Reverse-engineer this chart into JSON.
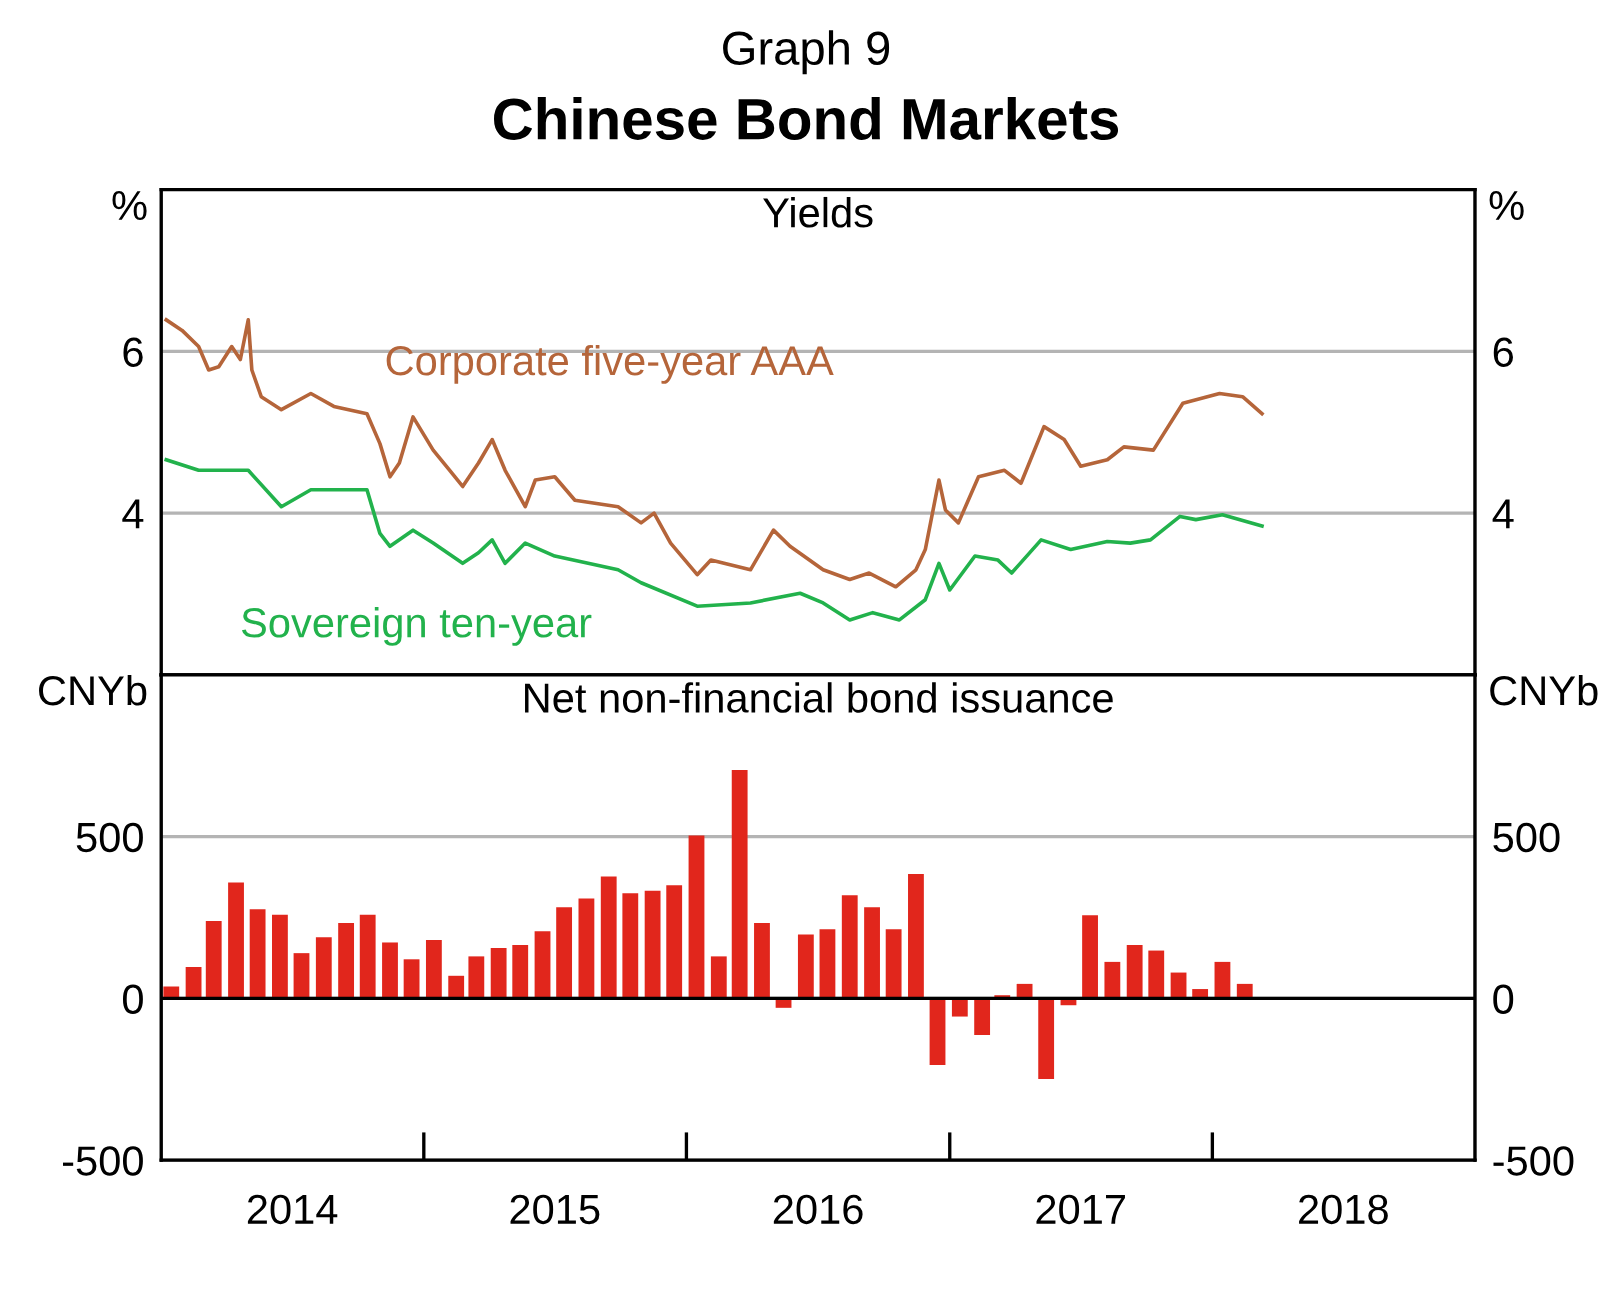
{
  "chart_data": [
    {
      "type": "line",
      "title": "Chinese Bond Markets",
      "subtitle": "Graph 9",
      "annotations": [
        "Yields"
      ],
      "ylabel": "%",
      "y2label": "%",
      "xlim": [
        "2014-01-01",
        "2019-01-01"
      ],
      "ylim": [
        2,
        8
      ],
      "yticks": [
        4,
        6
      ],
      "y2lim": [
        2,
        8
      ],
      "y2ticks": [
        4,
        6
      ],
      "grid": "y",
      "legend": false,
      "tick_labels": "y",
      "line_style": "solid",
      "marker": "none",
      "series": [
        {
          "name": "Corporate five-year AAA",
          "color": "#b5653a",
          "x": [
            "2014-01-08",
            "2014-01-30",
            "2014-02-22",
            "2014-03-08",
            "2014-03-22",
            "2014-04-09",
            "2014-04-21",
            "2014-05-02",
            "2014-05-07",
            "2014-05-20",
            "2014-06-17",
            "2014-07-28",
            "2014-08-29",
            "2014-10-14",
            "2014-11-01",
            "2014-11-15",
            "2014-11-28",
            "2014-12-17",
            "2015-01-14",
            "2015-02-06",
            "2015-02-24",
            "2015-03-18",
            "2015-04-06",
            "2015-04-24",
            "2015-05-22",
            "2015-06-05",
            "2015-07-02",
            "2015-07-30",
            "2015-09-28",
            "2015-10-30",
            "2015-11-17",
            "2015-12-10",
            "2016-01-16",
            "2016-02-04",
            "2016-03-30",
            "2016-05-01",
            "2016-05-24",
            "2016-07-09",
            "2016-08-15",
            "2016-09-11",
            "2016-10-18",
            "2016-11-15",
            "2016-11-28",
            "2016-12-17",
            "2016-12-26",
            "2017-01-13",
            "2017-02-10",
            "2017-03-18",
            "2017-04-10",
            "2017-05-12",
            "2017-06-09",
            "2017-07-02",
            "2017-08-08",
            "2017-08-31",
            "2017-10-11",
            "2017-11-21",
            "2018-01-11",
            "2018-02-12",
            "2018-03-11"
          ],
          "values": [
            6.39,
            6.26,
            6.06,
            5.77,
            5.81,
            6.06,
            5.9,
            6.39,
            5.77,
            5.44,
            5.28,
            5.48,
            5.32,
            5.23,
            4.86,
            4.45,
            4.62,
            5.19,
            4.78,
            4.53,
            4.33,
            4.62,
            4.91,
            4.53,
            4.08,
            4.41,
            4.45,
            4.16,
            4.08,
            3.88,
            4.0,
            3.63,
            3.24,
            3.42,
            3.3,
            3.79,
            3.59,
            3.3,
            3.18,
            3.26,
            3.09,
            3.3,
            3.55,
            4.41,
            4.04,
            3.88,
            4.45,
            4.53,
            4.37,
            5.07,
            4.91,
            4.58,
            4.66,
            4.82,
            4.78,
            5.36,
            5.48,
            5.44,
            5.23
          ]
        },
        {
          "name": "Sovereign ten-year",
          "color": "#22b24c",
          "x": [
            "2014-01-08",
            "2014-02-22",
            "2014-05-02",
            "2014-06-17",
            "2014-07-28",
            "2014-10-14",
            "2014-11-01",
            "2014-11-15",
            "2014-12-17",
            "2015-01-14",
            "2015-02-24",
            "2015-03-18",
            "2015-04-06",
            "2015-04-24",
            "2015-05-22",
            "2015-07-02",
            "2015-09-28",
            "2015-10-30",
            "2016-01-16",
            "2016-03-30",
            "2016-06-07",
            "2016-07-09",
            "2016-08-15",
            "2016-09-16",
            "2016-10-23",
            "2016-11-28",
            "2016-12-17",
            "2017-01-01",
            "2017-02-05",
            "2017-03-09",
            "2017-03-28",
            "2017-05-08",
            "2017-06-18",
            "2017-08-08",
            "2017-09-09",
            "2017-10-07",
            "2017-11-17",
            "2017-12-09",
            "2018-01-15",
            "2018-03-11"
          ],
          "values": [
            4.66,
            4.53,
            4.53,
            4.08,
            4.29,
            4.29,
            3.75,
            3.59,
            3.79,
            3.63,
            3.38,
            3.51,
            3.67,
            3.38,
            3.63,
            3.47,
            3.3,
            3.14,
            2.85,
            2.89,
            3.01,
            2.89,
            2.68,
            2.77,
            2.68,
            2.93,
            3.38,
            3.05,
            3.47,
            3.42,
            3.26,
            3.67,
            3.55,
            3.65,
            3.63,
            3.67,
            3.96,
            3.92,
            3.98,
            3.84
          ]
        }
      ]
    },
    {
      "type": "bar",
      "title": "Net non-financial bond issuance",
      "ylabel": "CNYb",
      "y2label": "CNYb",
      "x": [
        "2014-01-15",
        "2014-02-15",
        "2014-03-15",
        "2014-04-15",
        "2014-05-15",
        "2014-06-15",
        "2014-07-15",
        "2014-08-15",
        "2014-09-15",
        "2014-10-15",
        "2014-11-15",
        "2014-12-15",
        "2015-01-15",
        "2015-02-15",
        "2015-03-15",
        "2015-04-15",
        "2015-05-15",
        "2015-06-15",
        "2015-07-15",
        "2015-08-15",
        "2015-09-15",
        "2015-10-15",
        "2015-11-15",
        "2015-12-15",
        "2016-01-15",
        "2016-02-15",
        "2016-03-15",
        "2016-04-15",
        "2016-05-15",
        "2016-06-15",
        "2016-07-15",
        "2016-08-15",
        "2016-09-15",
        "2016-10-15",
        "2016-11-15",
        "2016-12-15",
        "2017-01-15",
        "2017-02-15",
        "2017-03-15",
        "2017-04-15",
        "2017-05-15",
        "2017-06-15",
        "2017-07-15",
        "2017-08-15",
        "2017-09-15",
        "2017-10-15",
        "2017-11-15",
        "2017-12-15",
        "2018-01-15",
        "2018-02-15"
      ],
      "values": [
        37,
        97,
        239,
        358,
        276,
        259,
        140,
        189,
        233,
        259,
        173,
        121,
        181,
        70,
        130,
        156,
        165,
        208,
        282,
        309,
        377,
        325,
        333,
        350,
        504,
        130,
        706,
        233,
        -29,
        198,
        214,
        319,
        282,
        214,
        385,
        -206,
        -56,
        -113,
        10,
        45,
        -249,
        -21,
        257,
        113,
        165,
        148,
        80,
        29,
        113,
        45
      ],
      "color": "#e1261c",
      "xlim": [
        "2014-01-01",
        "2019-01-01"
      ],
      "xticks": [
        {
          "value": "2015-01-01",
          "label": null
        },
        {
          "value": "2016-01-01",
          "label": null
        },
        {
          "value": "2017-01-01",
          "label": null
        },
        {
          "value": "2018-01-01",
          "label": null
        },
        {
          "value": "2014-07-02",
          "label": "2014"
        },
        {
          "value": "2015-07-02",
          "label": "2015"
        },
        {
          "value": "2016-07-02",
          "label": "2016"
        },
        {
          "value": "2017-07-02",
          "label": "2017"
        },
        {
          "value": "2018-07-02",
          "label": "2018"
        }
      ],
      "ylim": [
        -500,
        1000
      ],
      "yticks": [
        -500,
        0,
        500
      ],
      "y2lim": [
        -500,
        1000
      ],
      "y2ticks": [
        -500,
        0,
        500
      ],
      "grid": "y",
      "legend": false,
      "ref_lines": [
        {
          "axis": "y",
          "value": 0,
          "color": "#000000"
        }
      ]
    }
  ]
}
